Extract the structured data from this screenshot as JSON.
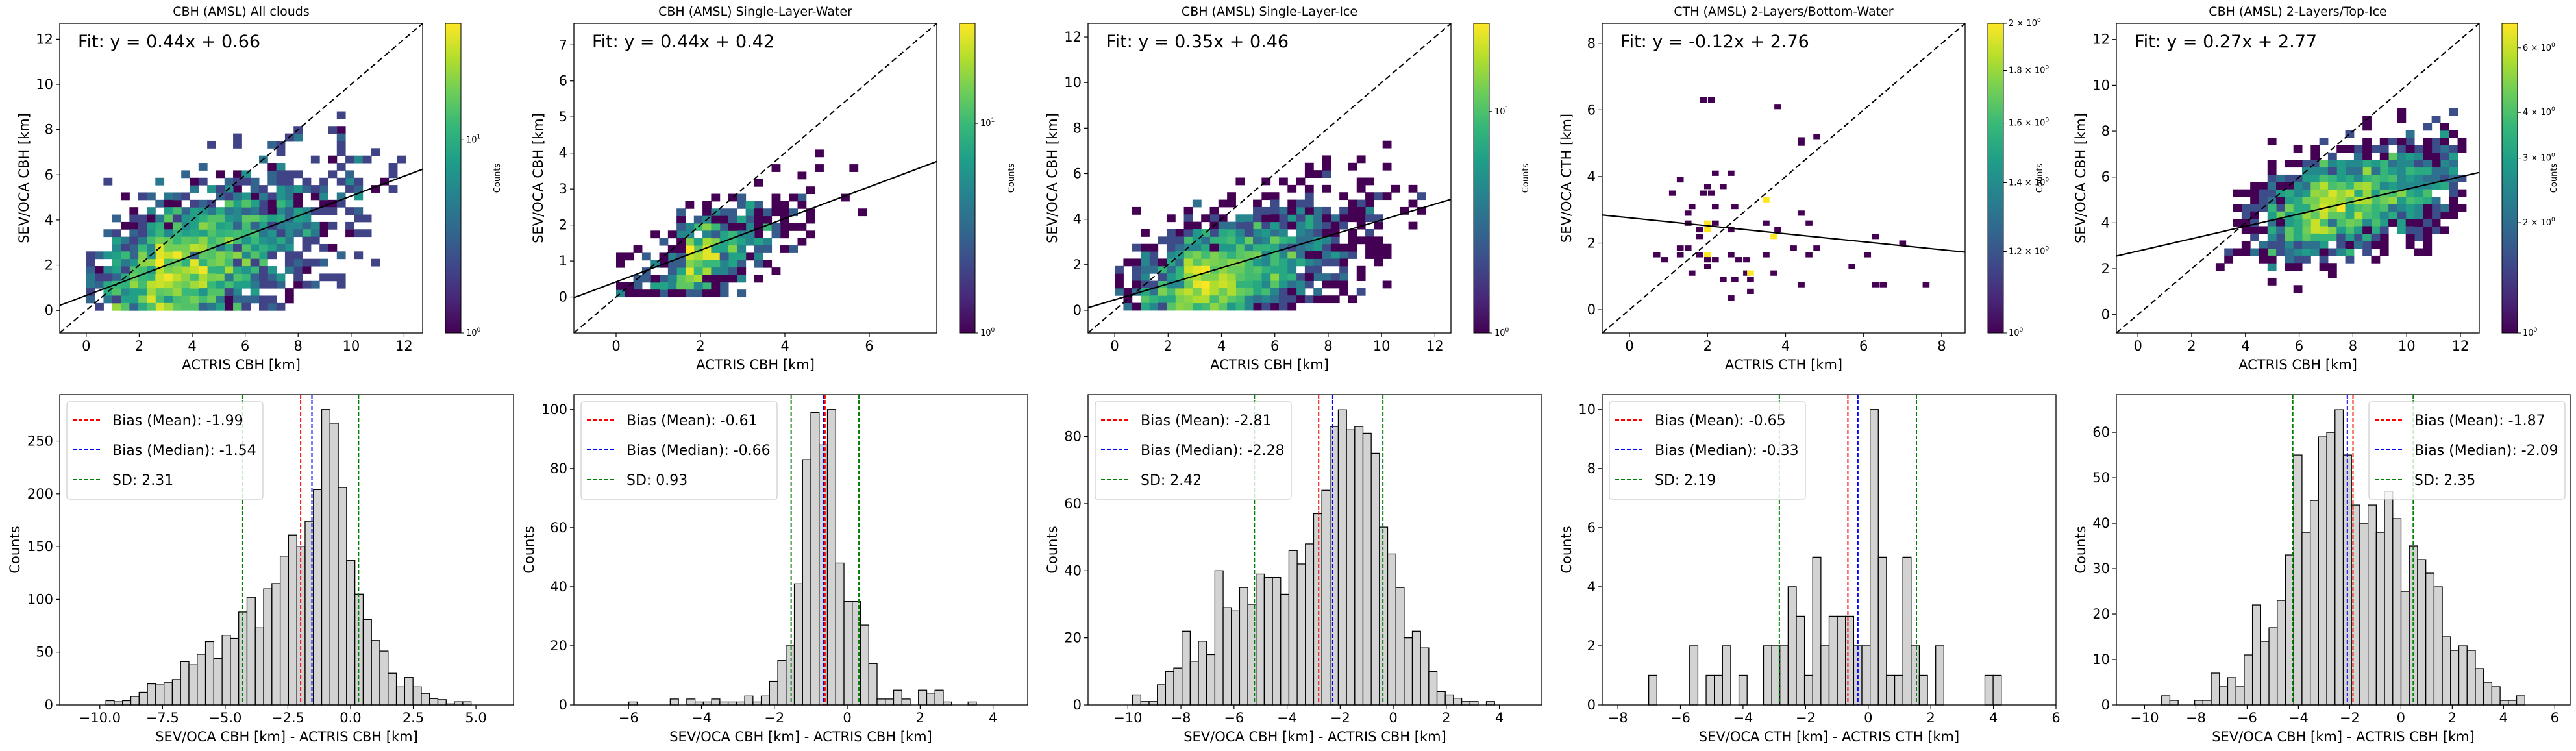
{
  "figure": {
    "colormap": "viridis",
    "colors": {
      "mean_line": "#ff0000",
      "median_line": "#0000ff",
      "sd_line": "#008000",
      "bar_fill": "#d3d3d3",
      "bar_edge": "#000000",
      "fit_line": "#000000",
      "identity_line": "#000000"
    }
  },
  "chart_data": [
    {
      "type": "heatmap",
      "title": "CBH (AMSL) All clouds",
      "xlabel": "ACTRIS CBH [km]",
      "ylabel": "SEV/OCA CBH [km]",
      "xlim": [
        -1,
        12.7
      ],
      "ylim": [
        -1,
        12.7
      ],
      "xticks": [
        0,
        2,
        4,
        6,
        8,
        10,
        12
      ],
      "yticks": [
        0,
        2,
        4,
        6,
        8,
        10,
        12
      ],
      "fit": {
        "slope": 0.44,
        "intercept": 0.66,
        "label": "Fit: y = 0.44x + 0.66"
      },
      "identity_line": true,
      "colorbar": {
        "label": "Counts",
        "scale": "log",
        "ticks": [
          "10^0",
          "10^1"
        ],
        "max_count": 40
      },
      "density": {
        "cx": 2.5,
        "cy": 1.2,
        "spread_x": 3.2,
        "spread_y": 2.6,
        "x_range": [
          0,
          12
        ],
        "y_range": [
          0,
          10.5
        ],
        "n_cells": 900,
        "trend": 0.44
      }
    },
    {
      "type": "heatmap",
      "title": "CBH (AMSL) Single-Layer-Water",
      "xlabel": "ACTRIS CBH [km]",
      "ylabel": "SEV/OCA CBH [km]",
      "xlim": [
        -1,
        7.6
      ],
      "ylim": [
        -1,
        7.6
      ],
      "xticks": [
        0,
        2,
        4,
        6
      ],
      "yticks": [
        0,
        1,
        2,
        3,
        4,
        5,
        6,
        7
      ],
      "fit": {
        "slope": 0.44,
        "intercept": 0.42,
        "label": "Fit: y = 0.44x + 0.42"
      },
      "identity_line": true,
      "colorbar": {
        "label": "Counts",
        "scale": "log",
        "ticks": [
          "10^0",
          "10^1"
        ],
        "max_count": 30
      },
      "density": {
        "cx": 1.5,
        "cy": 0.8,
        "spread_x": 1.3,
        "spread_y": 1.0,
        "x_range": [
          0,
          7
        ],
        "y_range": [
          0,
          7
        ],
        "n_cells": 140,
        "trend": 0.44
      }
    },
    {
      "type": "heatmap",
      "title": "CBH (AMSL) Single-Layer-Ice",
      "xlabel": "ACTRIS CBH [km]",
      "ylabel": "SEV/OCA CBH [km]",
      "xlim": [
        -1,
        12.6
      ],
      "ylim": [
        -1,
        12.6
      ],
      "xticks": [
        0,
        2,
        4,
        6,
        8,
        10,
        12
      ],
      "yticks": [
        0,
        2,
        4,
        6,
        8,
        10,
        12
      ],
      "fit": {
        "slope": 0.35,
        "intercept": 0.46,
        "label": "Fit: y = 0.35x + 0.46"
      },
      "identity_line": true,
      "colorbar": {
        "label": "Counts",
        "scale": "log",
        "ticks": [
          "10^0",
          "10^1"
        ],
        "max_count": 25
      },
      "density": {
        "cx": 2.6,
        "cy": 0.8,
        "spread_x": 3.0,
        "spread_y": 2.2,
        "x_range": [
          0,
          12
        ],
        "y_range": [
          0,
          10.5
        ],
        "n_cells": 520,
        "trend": 0.35
      }
    },
    {
      "type": "heatmap",
      "title": "CTH (AMSL) 2-Layers/Bottom-Water",
      "xlabel": "ACTRIS CTH [km]",
      "ylabel": "SEV/OCA CTH [km]",
      "xlim": [
        -0.7,
        8.6
      ],
      "ylim": [
        -0.7,
        8.6
      ],
      "xticks": [
        0,
        2,
        4,
        6,
        8
      ],
      "yticks": [
        0,
        2,
        4,
        6,
        8
      ],
      "fit": {
        "slope": -0.12,
        "intercept": 2.76,
        "label": "Fit: y = -0.12x + 2.76"
      },
      "identity_line": true,
      "colorbar": {
        "label": "Counts",
        "scale": "log",
        "ticks": [
          "10^0",
          "1.2 × 10^0",
          "1.4 × 10^0",
          "1.6 × 10^0",
          "1.8 × 10^0",
          "2 × 10^0"
        ],
        "max_count": 2
      },
      "points": [
        [
          1.9,
          6.3
        ],
        [
          2.1,
          6.3
        ],
        [
          3.8,
          6.1
        ],
        [
          4.4,
          5.1
        ],
        [
          4.4,
          5.0
        ],
        [
          4.8,
          5.2
        ],
        [
          2.2,
          4.1
        ],
        [
          2.6,
          4.1
        ],
        [
          1.3,
          3.9
        ],
        [
          2.0,
          3.7
        ],
        [
          2.4,
          3.7
        ],
        [
          1.1,
          3.5
        ],
        [
          1.9,
          3.5
        ],
        [
          2.1,
          3.5
        ],
        [
          3.5,
          3.3,
          2
        ],
        [
          1.6,
          3.1
        ],
        [
          2.2,
          3.1
        ],
        [
          2.7,
          3.1
        ],
        [
          1.5,
          2.9
        ],
        [
          4.4,
          2.9
        ],
        [
          2.0,
          2.6,
          2
        ],
        [
          2.2,
          2.6
        ],
        [
          1.5,
          2.6
        ],
        [
          3.5,
          2.6
        ],
        [
          4.6,
          2.6
        ],
        [
          2.0,
          2.4,
          2
        ],
        [
          1.8,
          2.4
        ],
        [
          2.6,
          2.4
        ],
        [
          3.8,
          2.4
        ],
        [
          1.8,
          2.2
        ],
        [
          3.7,
          2.2,
          2
        ],
        [
          6.3,
          2.2
        ],
        [
          7.0,
          2.0
        ],
        [
          1.3,
          1.85
        ],
        [
          1.5,
          1.85
        ],
        [
          4.2,
          1.85
        ],
        [
          4.8,
          1.85
        ],
        [
          0.7,
          1.65
        ],
        [
          1.3,
          1.65
        ],
        [
          1.8,
          1.65
        ],
        [
          2.0,
          1.65,
          2
        ],
        [
          2.6,
          1.65
        ],
        [
          3.5,
          1.65
        ],
        [
          4.6,
          1.65
        ],
        [
          6.1,
          1.65
        ],
        [
          0.9,
          1.5
        ],
        [
          2.0,
          1.5
        ],
        [
          2.2,
          1.5
        ],
        [
          2.8,
          1.5
        ],
        [
          3.0,
          1.5
        ],
        [
          2.0,
          1.3
        ],
        [
          5.7,
          1.3
        ],
        [
          1.6,
          1.1
        ],
        [
          3.0,
          1.1
        ],
        [
          3.1,
          1.1,
          2
        ],
        [
          3.7,
          1.1
        ],
        [
          2.4,
          0.9
        ],
        [
          2.7,
          0.9
        ],
        [
          3.1,
          0.9
        ],
        [
          4.4,
          0.75
        ],
        [
          6.3,
          0.75
        ],
        [
          6.5,
          0.75
        ],
        [
          7.6,
          0.75
        ],
        [
          3.1,
          0.55
        ],
        [
          2.6,
          0.35
        ]
      ]
    },
    {
      "type": "heatmap",
      "title": "CBH (AMSL) 2-Layers/Top-Ice",
      "xlabel": "ACTRIS CBH [km]",
      "ylabel": "SEV/OCA CBH [km]",
      "xlim": [
        -0.8,
        12.7
      ],
      "ylim": [
        -0.8,
        12.7
      ],
      "xticks": [
        0,
        2,
        4,
        6,
        8,
        10,
        12
      ],
      "yticks": [
        0,
        2,
        4,
        6,
        8,
        10,
        12
      ],
      "fit": {
        "slope": 0.27,
        "intercept": 2.77,
        "label": "Fit: y = 0.27x + 2.77"
      },
      "identity_line": true,
      "colorbar": {
        "label": "Counts",
        "scale": "log",
        "ticks": [
          "10^0",
          "2 × 10^0",
          "3 × 10^0",
          "4 × 10^0",
          "6 × 10^0"
        ],
        "max_count": 7
      },
      "density": {
        "cx": 6.5,
        "cy": 4.5,
        "spread_x": 3.3,
        "spread_y": 1.8,
        "x_range": [
          0,
          12
        ],
        "y_range": [
          0.5,
          10.5
        ],
        "n_cells": 420,
        "trend": 0.27
      }
    },
    {
      "type": "bar",
      "subtype": "histogram",
      "xlabel": "SEV/OCA CBH [km] - ACTRIS CBH [km]",
      "ylabel": "Counts",
      "xlim": [
        -11.6,
        6.5
      ],
      "ylim": [
        0,
        294
      ],
      "xticks": [
        -10.0,
        -7.5,
        -5.0,
        -2.5,
        0.0,
        2.5,
        5.0
      ],
      "xtick_labels": [
        "−10.0",
        "−7.5",
        "−5.0",
        "−2.5",
        "0.0",
        "2.5",
        "5.0"
      ],
      "yticks": [
        0,
        50,
        100,
        150,
        200,
        250
      ],
      "bin_start": -10.75,
      "bin_width": 0.331,
      "values": [
        0,
        0,
        0,
        4,
        3,
        4,
        8,
        12,
        20,
        19,
        21,
        24,
        41,
        38,
        48,
        60,
        44,
        66,
        63,
        88,
        102,
        73,
        110,
        115,
        141,
        161,
        150,
        174,
        204,
        280,
        267,
        206,
        137,
        105,
        81,
        61,
        51,
        30,
        17,
        26,
        17,
        11,
        6,
        5,
        1,
        3,
        3,
        0,
        0,
        0
      ],
      "legend": {
        "position": "upper-left",
        "entries": [
          {
            "label": "Bias (Mean): -1.99",
            "color": "#ff0000"
          },
          {
            "label": "Bias (Median): -1.54",
            "color": "#0000ff"
          },
          {
            "label": "SD: 2.31",
            "color": "#008000"
          }
        ]
      },
      "vlines": {
        "mean": -1.99,
        "median": -1.54,
        "sd_low": -4.3,
        "sd_high": 0.32
      }
    },
    {
      "type": "bar",
      "subtype": "histogram",
      "xlabel": "SEV/OCA CBH [km] - ACTRIS CBH [km]",
      "ylabel": "Counts",
      "xlim": [
        -7.5,
        4.95
      ],
      "ylim": [
        0,
        105
      ],
      "xticks": [
        -6,
        -4,
        -2,
        0,
        2,
        4
      ],
      "xtick_labels": [
        "−6",
        "−4",
        "−2",
        "0",
        "2",
        "4"
      ],
      "yticks": [
        0,
        20,
        40,
        60,
        80,
        100
      ],
      "bin_start": -6.9,
      "bin_width": 0.227,
      "values": [
        0,
        0,
        0,
        0,
        1,
        0,
        0,
        0,
        0,
        2,
        0,
        2,
        1,
        1,
        2,
        1,
        1,
        1,
        3,
        1,
        3,
        8,
        15,
        20,
        41,
        83,
        99,
        88,
        100,
        48,
        35,
        35,
        27,
        14,
        2,
        2,
        5,
        2,
        0,
        5,
        4,
        5,
        1,
        0,
        0,
        1,
        0,
        0,
        0,
        0
      ],
      "legend": {
        "position": "upper-left",
        "entries": [
          {
            "label": "Bias (Mean): -0.61",
            "color": "#ff0000"
          },
          {
            "label": "Bias (Median): -0.66",
            "color": "#0000ff"
          },
          {
            "label": "SD: 0.93",
            "color": "#008000"
          }
        ]
      },
      "vlines": {
        "mean": -0.61,
        "median": -0.66,
        "sd_low": -1.54,
        "sd_high": 0.32
      }
    },
    {
      "type": "bar",
      "subtype": "histogram",
      "xlabel": "SEV/OCA CBH [km] - ACTRIS CBH [km]",
      "ylabel": "Counts",
      "xlim": [
        -11.5,
        5.6
      ],
      "ylim": [
        0,
        92.5
      ],
      "xticks": [
        -10,
        -8,
        -6,
        -4,
        -2,
        0,
        2,
        4
      ],
      "xtick_labels": [
        "−10",
        "−8",
        "−6",
        "−4",
        "−2",
        "0",
        "2",
        "4"
      ],
      "yticks": [
        0,
        20,
        40,
        60,
        80
      ],
      "bin_start": -10.75,
      "bin_width": 0.31,
      "values": [
        0,
        0,
        0,
        3,
        1,
        1,
        6,
        10,
        11,
        22,
        13,
        19,
        15,
        40,
        29,
        28,
        35,
        30,
        39,
        38,
        38,
        33,
        46,
        42,
        48,
        57,
        64,
        83,
        88,
        82,
        83,
        81,
        75,
        53,
        45,
        35,
        20,
        22,
        17,
        10,
        4,
        3,
        2,
        1,
        1,
        0,
        1,
        0,
        0,
        0
      ],
      "legend": {
        "position": "upper-left",
        "entries": [
          {
            "label": "Bias (Mean): -2.81",
            "color": "#ff0000"
          },
          {
            "label": "Bias (Median): -2.28",
            "color": "#0000ff"
          },
          {
            "label": "SD: 2.42",
            "color": "#008000"
          }
        ]
      },
      "vlines": {
        "mean": -2.81,
        "median": -2.28,
        "sd_low": -5.23,
        "sd_high": -0.39
      }
    },
    {
      "type": "bar",
      "subtype": "histogram",
      "xlabel": "SEV/OCA CTH [km] - ACTRIS CTH [km]",
      "ylabel": "Counts",
      "xlim": [
        -8.5,
        6.0
      ],
      "ylim": [
        0,
        10.5
      ],
      "xticks": [
        -8,
        -6,
        -4,
        -2,
        0,
        2,
        4,
        6
      ],
      "xtick_labels": [
        "−8",
        "−6",
        "−4",
        "−2",
        "0",
        "2",
        "4",
        "6"
      ],
      "yticks": [
        0,
        2,
        4,
        6,
        8,
        10
      ],
      "bin_start": -7.8,
      "bin_width": 0.262,
      "values": [
        0,
        0,
        0,
        1,
        0,
        0,
        0,
        0,
        2,
        0,
        1,
        1,
        2,
        0,
        1,
        0,
        0,
        2,
        2,
        2,
        4,
        3,
        1,
        5,
        2,
        3,
        3,
        3,
        2,
        2,
        10,
        5,
        1,
        1,
        5,
        2,
        1,
        0,
        2,
        0,
        0,
        0,
        0,
        0,
        1,
        1,
        0,
        0,
        0,
        0
      ],
      "legend": {
        "position": "upper-left",
        "entries": [
          {
            "label": "Bias (Mean): -0.65",
            "color": "#ff0000"
          },
          {
            "label": "Bias (Median): -0.33",
            "color": "#0000ff"
          },
          {
            "label": "SD: 2.19",
            "color": "#008000"
          }
        ]
      },
      "vlines": {
        "mean": -0.65,
        "median": -0.33,
        "sd_low": -2.84,
        "sd_high": 1.54
      }
    },
    {
      "type": "bar",
      "subtype": "histogram",
      "xlabel": "SEV/OCA CBH [km] - ACTRIS CBH [km]",
      "ylabel": "Counts",
      "xlim": [
        -11.1,
        6.6
      ],
      "ylim": [
        0,
        68.3
      ],
      "xticks": [
        -10,
        -8,
        -6,
        -4,
        -2,
        0,
        2,
        4,
        6
      ],
      "xtick_labels": [
        "−10",
        "−8",
        "−6",
        "−4",
        "−2",
        "0",
        "2",
        "4",
        "6"
      ],
      "yticks": [
        0,
        10,
        20,
        30,
        40,
        50,
        60
      ],
      "bin_start": -10.3,
      "bin_width": 0.322,
      "values": [
        0,
        0,
        0,
        2,
        1,
        0,
        0,
        1,
        1,
        7,
        4,
        6,
        4,
        11,
        22,
        14,
        17,
        23,
        33,
        55,
        38,
        45,
        59,
        60,
        65,
        55,
        44,
        40,
        44,
        38,
        47,
        41,
        25,
        35,
        32,
        29,
        26,
        15,
        12,
        13,
        12,
        8,
        5,
        4,
        1,
        1,
        2,
        0,
        0,
        0
      ],
      "legend": {
        "position": "upper-right",
        "entries": [
          {
            "label": "Bias (Mean): -1.87",
            "color": "#ff0000"
          },
          {
            "label": "Bias (Median): -2.09",
            "color": "#0000ff"
          },
          {
            "label": "SD: 2.35",
            "color": "#008000"
          }
        ]
      },
      "vlines": {
        "mean": -1.87,
        "median": -2.09,
        "sd_low": -4.22,
        "sd_high": 0.48
      }
    }
  ]
}
